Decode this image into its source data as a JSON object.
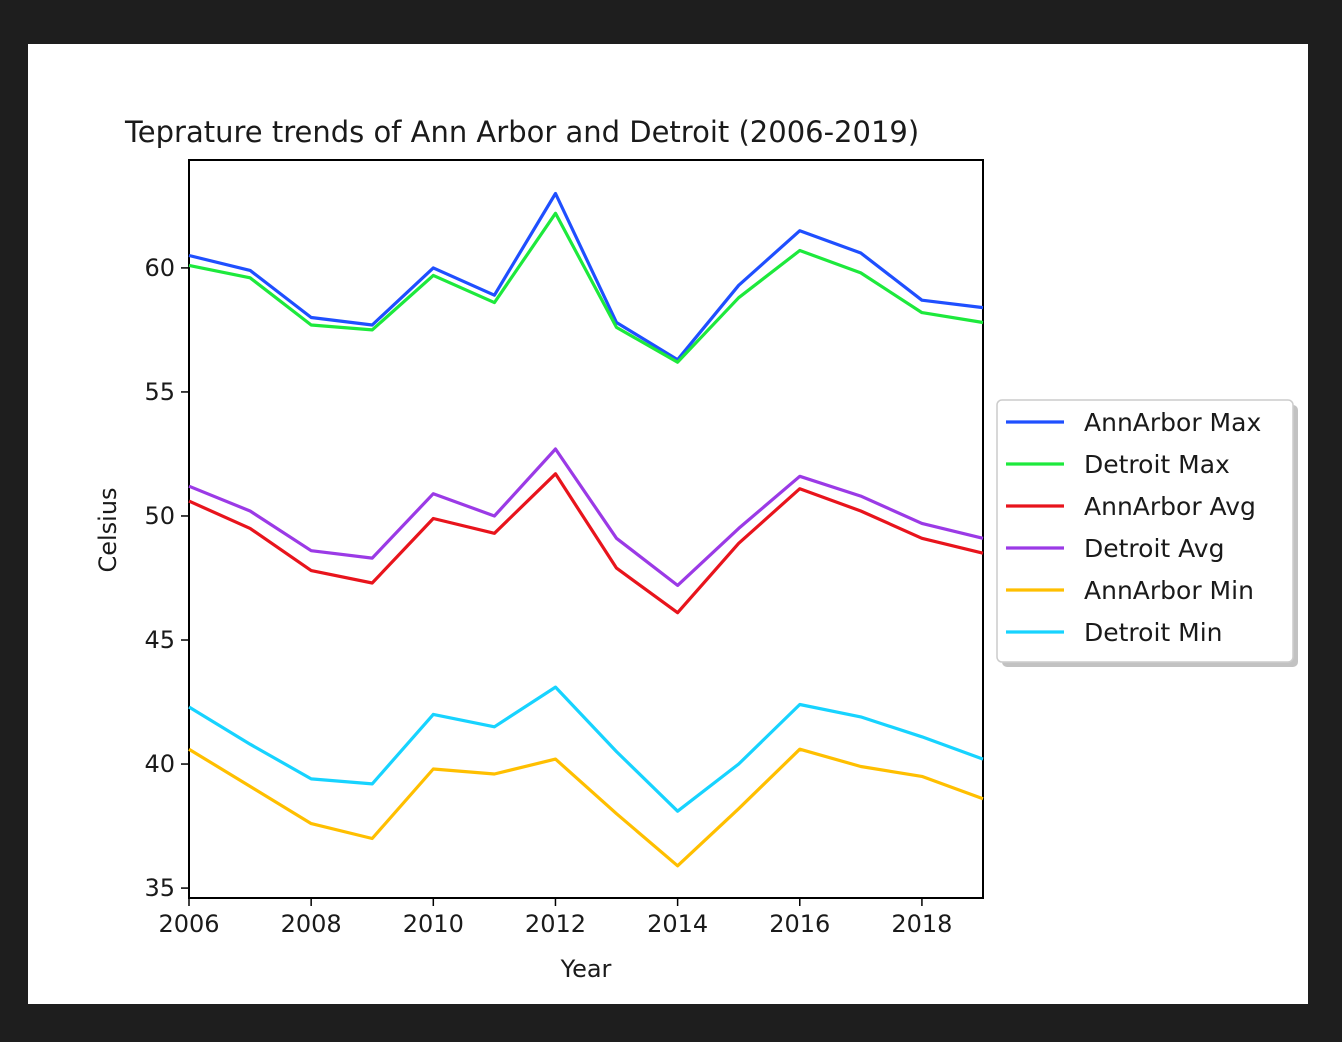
{
  "colors": {
    "page_background": "#1e1e1e",
    "figure_background": "#ffffff"
  },
  "chart_data": {
    "type": "line",
    "title": "Teprature trends of Ann Arbor and Detroit (2006-2019)",
    "xlabel": "Year",
    "ylabel": "Celsius",
    "x": [
      2006,
      2007,
      2008,
      2009,
      2010,
      2011,
      2012,
      2013,
      2014,
      2015,
      2016,
      2017,
      2018,
      2019
    ],
    "xlim": [
      2006,
      2019
    ],
    "ylim": [
      34.6,
      64.35
    ],
    "x_ticks": [
      2006,
      2008,
      2010,
      2012,
      2014,
      2016,
      2018
    ],
    "y_ticks": [
      35,
      40,
      45,
      50,
      55,
      60
    ],
    "x_tick_labels": [
      "2006",
      "2008",
      "2010",
      "2012",
      "2014",
      "2016",
      "2018"
    ],
    "y_tick_labels": [
      "35",
      "40",
      "45",
      "50",
      "55",
      "60"
    ],
    "grid": false,
    "legend_position": "center-right, outside plot area",
    "series": [
      {
        "name": "AnnArbor Max",
        "color": "#1f4fff",
        "values": [
          60.5,
          59.9,
          58.0,
          57.7,
          60.0,
          58.9,
          63.0,
          57.8,
          56.3,
          59.3,
          61.5,
          60.6,
          58.7,
          58.4
        ]
      },
      {
        "name": "Detroit Max",
        "color": "#1de93c",
        "values": [
          60.1,
          59.6,
          57.7,
          57.5,
          59.7,
          58.6,
          62.2,
          57.6,
          56.2,
          58.8,
          60.7,
          59.8,
          58.2,
          57.8
        ]
      },
      {
        "name": "AnnArbor Avg",
        "color": "#e8141c",
        "values": [
          50.6,
          49.5,
          47.8,
          47.3,
          49.9,
          49.3,
          51.7,
          47.9,
          46.1,
          48.9,
          51.1,
          50.2,
          49.1,
          48.5
        ]
      },
      {
        "name": "Detroit Avg",
        "color": "#9b3ae6",
        "values": [
          51.2,
          50.2,
          48.6,
          48.3,
          50.9,
          50.0,
          52.7,
          49.1,
          47.2,
          49.5,
          51.6,
          50.8,
          49.7,
          49.1
        ]
      },
      {
        "name": "AnnArbor Min",
        "color": "#ffbf00",
        "values": [
          40.6,
          39.1,
          37.6,
          37.0,
          39.8,
          39.6,
          40.2,
          38.0,
          35.9,
          38.2,
          40.6,
          39.9,
          39.5,
          38.6
        ]
      },
      {
        "name": "Detroit Min",
        "color": "#17d3ff",
        "values": [
          42.3,
          40.8,
          39.4,
          39.2,
          42.0,
          41.5,
          43.1,
          40.5,
          38.1,
          40.0,
          42.4,
          41.9,
          41.1,
          40.2
        ]
      }
    ]
  }
}
